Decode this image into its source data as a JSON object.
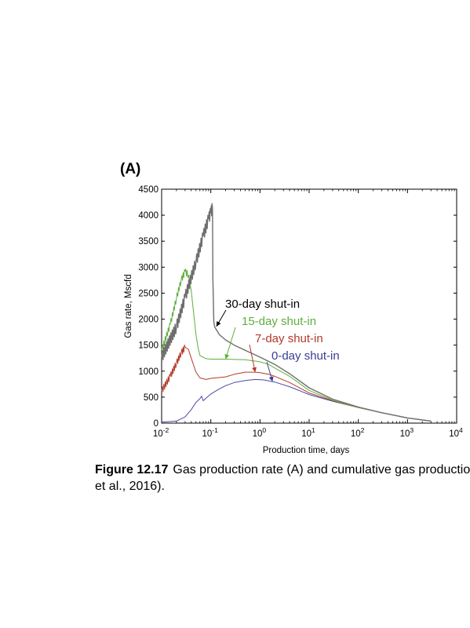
{
  "caption": {
    "figure_number": "Figure 12.17",
    "line1": "Gas production rate (A) and cumulative gas productio",
    "line2": "et al., 2016)."
  },
  "chart_data": {
    "type": "line",
    "panel_label": "(A)",
    "title": "",
    "xlabel": "Production time, days",
    "ylabel": "Gas rate, Mscfd",
    "x_scale": "log",
    "xlim": [
      0.01,
      10000
    ],
    "ylim": [
      0,
      4500
    ],
    "x_ticks": [
      0.01,
      0.1,
      1,
      10,
      100,
      1000,
      10000
    ],
    "x_tick_labels": [
      {
        "base": "10",
        "exp": "-2"
      },
      {
        "base": "10",
        "exp": "-1"
      },
      {
        "base": "10",
        "exp": "0"
      },
      {
        "base": "10",
        "exp": "1"
      },
      {
        "base": "10",
        "exp": "2"
      },
      {
        "base": "10",
        "exp": "3"
      },
      {
        "base": "10",
        "exp": "4"
      }
    ],
    "y_ticks": [
      0,
      500,
      1000,
      1500,
      2000,
      2500,
      3000,
      3500,
      4000,
      4500
    ],
    "grid": false,
    "series": [
      {
        "name": "0-day shut-in",
        "color": "#4a4aa8",
        "x": [
          0.01,
          0.02,
          0.03,
          0.04,
          0.05,
          0.06,
          0.065,
          0.07,
          0.08,
          0.1,
          0.15,
          0.2,
          0.3,
          0.5,
          0.8,
          1.2,
          2,
          4,
          10,
          30,
          100,
          300,
          1000,
          3000
        ],
        "y": [
          20,
          40,
          120,
          260,
          400,
          470,
          520,
          430,
          480,
          560,
          660,
          720,
          780,
          820,
          840,
          830,
          790,
          700,
          550,
          420,
          300,
          200,
          100,
          40
        ]
      },
      {
        "name": "7-day shut-in",
        "color": "#b23a2a",
        "x": [
          0.01,
          0.015,
          0.02,
          0.025,
          0.03,
          0.035,
          0.04,
          0.05,
          0.06,
          0.08,
          0.1,
          0.2,
          0.3,
          0.5,
          0.8,
          1,
          1.5,
          2,
          4,
          10,
          30,
          100,
          300,
          1000,
          3000
        ],
        "y": [
          620,
          900,
          1150,
          1350,
          1460,
          1420,
          1250,
          980,
          870,
          840,
          860,
          890,
          940,
          980,
          980,
          970,
          940,
          900,
          780,
          580,
          430,
          300,
          200,
          100,
          40
        ]
      },
      {
        "name": "15-day shut-in",
        "color": "#5fae3c",
        "x": [
          0.01,
          0.015,
          0.02,
          0.025,
          0.03,
          0.035,
          0.04,
          0.045,
          0.05,
          0.055,
          0.06,
          0.08,
          0.1,
          0.2,
          0.5,
          1,
          1.5,
          2,
          4,
          10,
          30,
          100,
          300,
          1000,
          3000
        ],
        "y": [
          1400,
          1900,
          2400,
          2750,
          2920,
          2850,
          2550,
          2100,
          1700,
          1450,
          1300,
          1240,
          1230,
          1230,
          1220,
          1180,
          1130,
          1060,
          900,
          630,
          440,
          300,
          200,
          100,
          40
        ]
      },
      {
        "name": "30-day shut-in",
        "color": "#6e6e6e",
        "x": [
          0.01,
          0.02,
          0.03,
          0.05,
          0.07,
          0.09,
          0.1,
          0.108,
          0.11,
          0.115,
          0.12,
          0.15,
          0.2,
          0.3,
          0.5,
          1,
          2,
          4,
          10,
          30,
          100,
          300,
          1000,
          3000
        ],
        "y": [
          1270,
          1850,
          2420,
          3100,
          3600,
          3930,
          4050,
          4140,
          2800,
          1950,
          1850,
          1700,
          1600,
          1500,
          1400,
          1270,
          1130,
          950,
          680,
          460,
          310,
          200,
          100,
          40
        ]
      }
    ],
    "noisy_x_end": [
      0,
      0.03,
      0.035,
      0.108
    ],
    "annotations": [
      {
        "text": "30-day shut-in",
        "color": "#000000",
        "arrow_to_series": 3,
        "target_x": 0.13,
        "target_y": 1860
      },
      {
        "text": "15-day shut-in",
        "color": "#5fae3c",
        "arrow_to_series": 2,
        "target_x": 0.2,
        "target_y": 1230
      },
      {
        "text": "7-day shut-in",
        "color": "#b23a2a",
        "arrow_to_series": 1,
        "target_x": 0.8,
        "target_y": 980
      },
      {
        "text": "0-day shut-in",
        "color": "#3b3b96",
        "arrow_to_series": 0,
        "target_x": 1.8,
        "target_y": 800
      }
    ]
  }
}
